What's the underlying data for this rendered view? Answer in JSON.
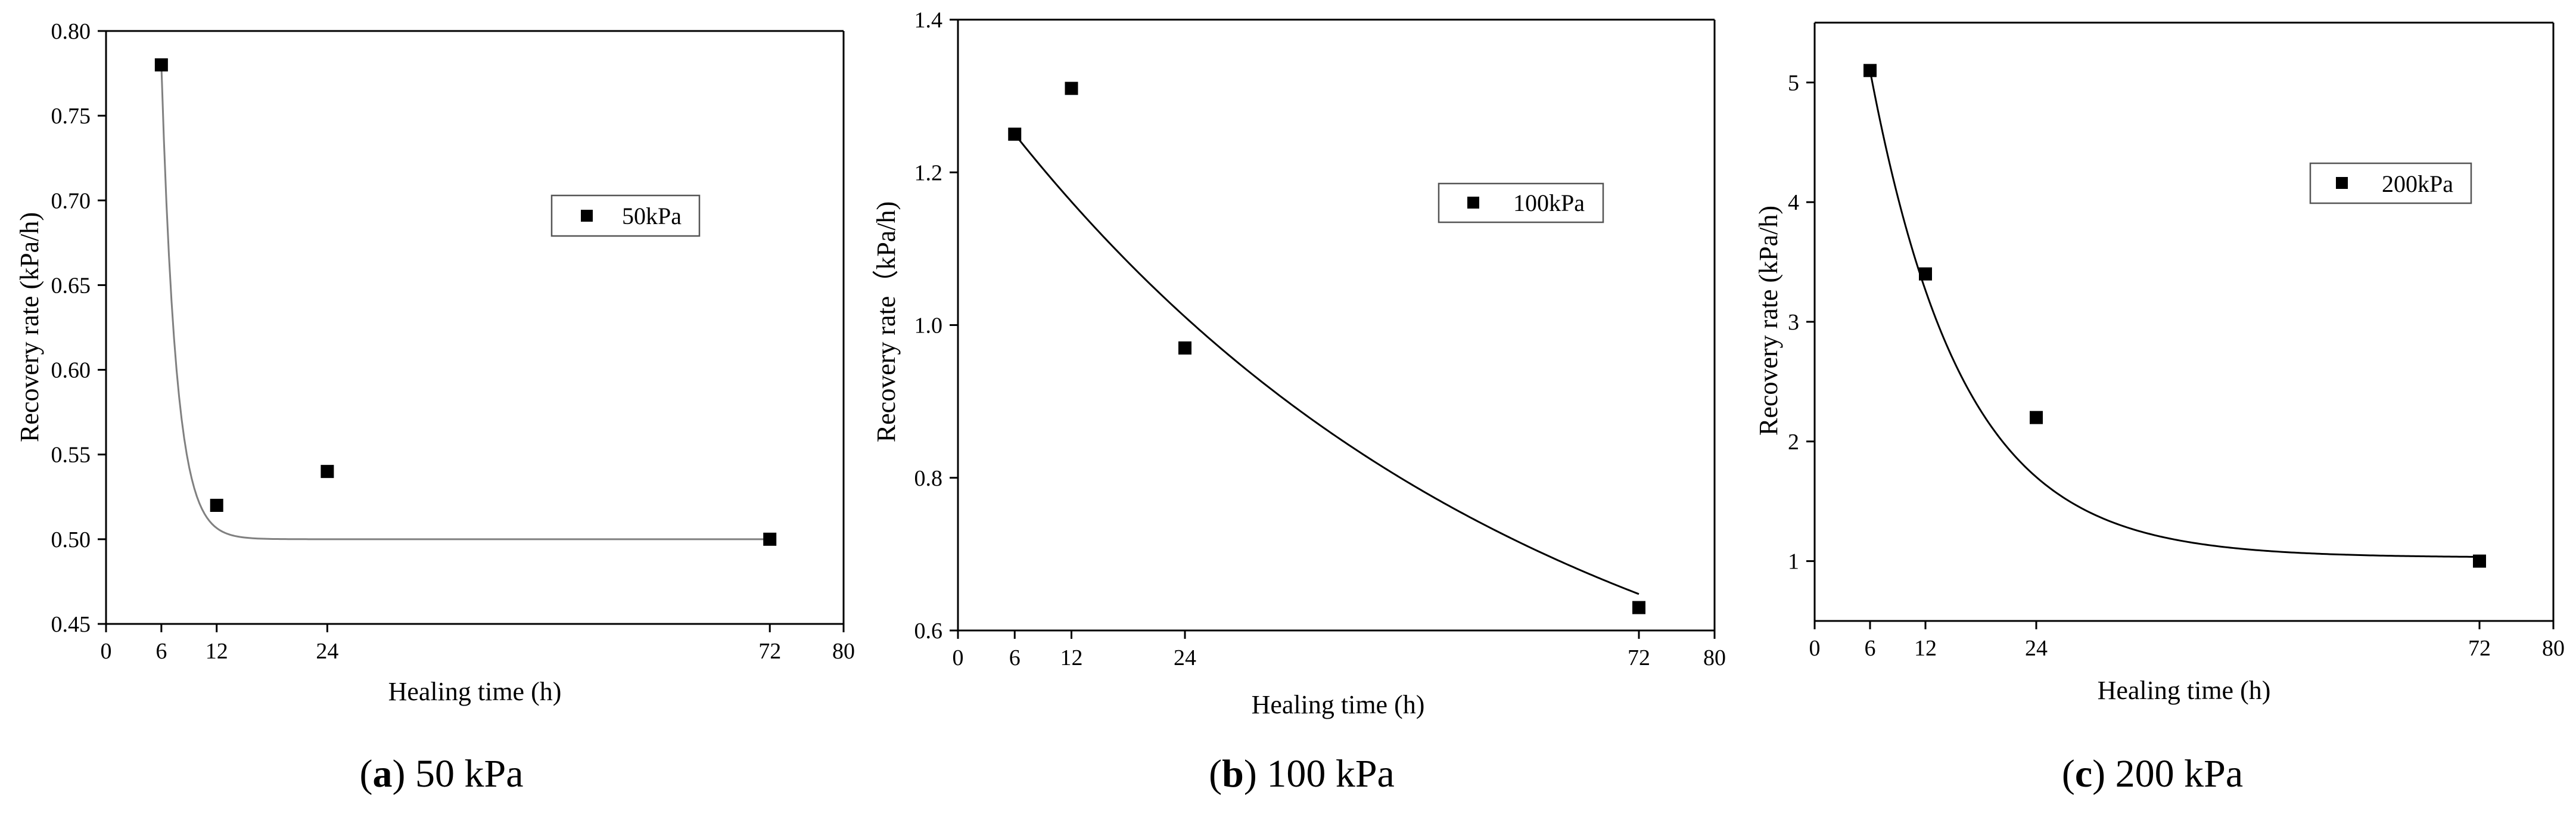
{
  "chart_data": [
    {
      "type": "scatter",
      "panel_label": "a",
      "caption": "50 kPa",
      "title": "",
      "xlabel": "Healing time (h)",
      "ylabel": "Recovery rate (kPa/h)",
      "xlim": [
        0,
        80
      ],
      "ylim": [
        0.45,
        0.8
      ],
      "xticks": [
        0,
        6,
        12,
        24,
        72,
        80
      ],
      "yticks": [
        0.45,
        0.5,
        0.55,
        0.6,
        0.65,
        0.7,
        0.75,
        0.8
      ],
      "y_decimals": 2,
      "legend": "50kPa",
      "legend_position": "right-middle",
      "series": [
        {
          "name": "50kPa",
          "x": [
            6,
            12,
            24,
            72
          ],
          "y": [
            0.78,
            0.52,
            0.54,
            0.5
          ]
        }
      ],
      "fit": {
        "model": "exponential decay",
        "x_start": 6,
        "x_end": 72,
        "y0": 0.5,
        "A": 0.28,
        "tau": 1.6
      },
      "fit_color": "#808080"
    },
    {
      "type": "scatter",
      "panel_label": "b",
      "caption": "100 kPa",
      "title": "",
      "xlabel": "Healing time (h)",
      "ylabel": "Recovery rate（kPa/h)",
      "xlim": [
        0,
        80
      ],
      "ylim": [
        0.6,
        1.4
      ],
      "xticks": [
        0,
        6,
        12,
        24,
        72,
        80
      ],
      "yticks": [
        0.6,
        0.8,
        1.0,
        1.2,
        1.4
      ],
      "y_decimals": 1,
      "legend": "100kPa",
      "legend_position": "top-right",
      "series": [
        {
          "name": "100kPa",
          "x": [
            6,
            12,
            24,
            72
          ],
          "y": [
            1.25,
            1.31,
            0.97,
            0.63
          ]
        }
      ],
      "fit": {
        "model": "exponential decay",
        "x_start": 6,
        "x_end": 72,
        "y0": 0.38,
        "A": 0.87,
        "tau": 56
      },
      "fit_color": "#000000"
    },
    {
      "type": "scatter",
      "panel_label": "c",
      "caption": "200 kPa",
      "title": "",
      "xlabel": "Healing time (h)",
      "ylabel": "Recovery rate (kPa/h)",
      "xlim": [
        0,
        80
      ],
      "ylim": [
        0.5,
        5.5
      ],
      "xticks": [
        0,
        6,
        12,
        24,
        72,
        80
      ],
      "yticks": [
        1,
        2,
        3,
        4,
        5
      ],
      "y_decimals": 0,
      "legend": "200kPa",
      "legend_position": "top-right",
      "series": [
        {
          "name": "200kPa",
          "x": [
            6,
            12,
            24,
            72
          ],
          "y": [
            5.1,
            3.4,
            2.2,
            1.0
          ]
        }
      ],
      "fit": {
        "model": "exponential decay",
        "x_start": 6,
        "x_end": 72,
        "y0": 1.03,
        "A": 4.07,
        "tau": 10
      },
      "fit_color": "#000000"
    }
  ]
}
